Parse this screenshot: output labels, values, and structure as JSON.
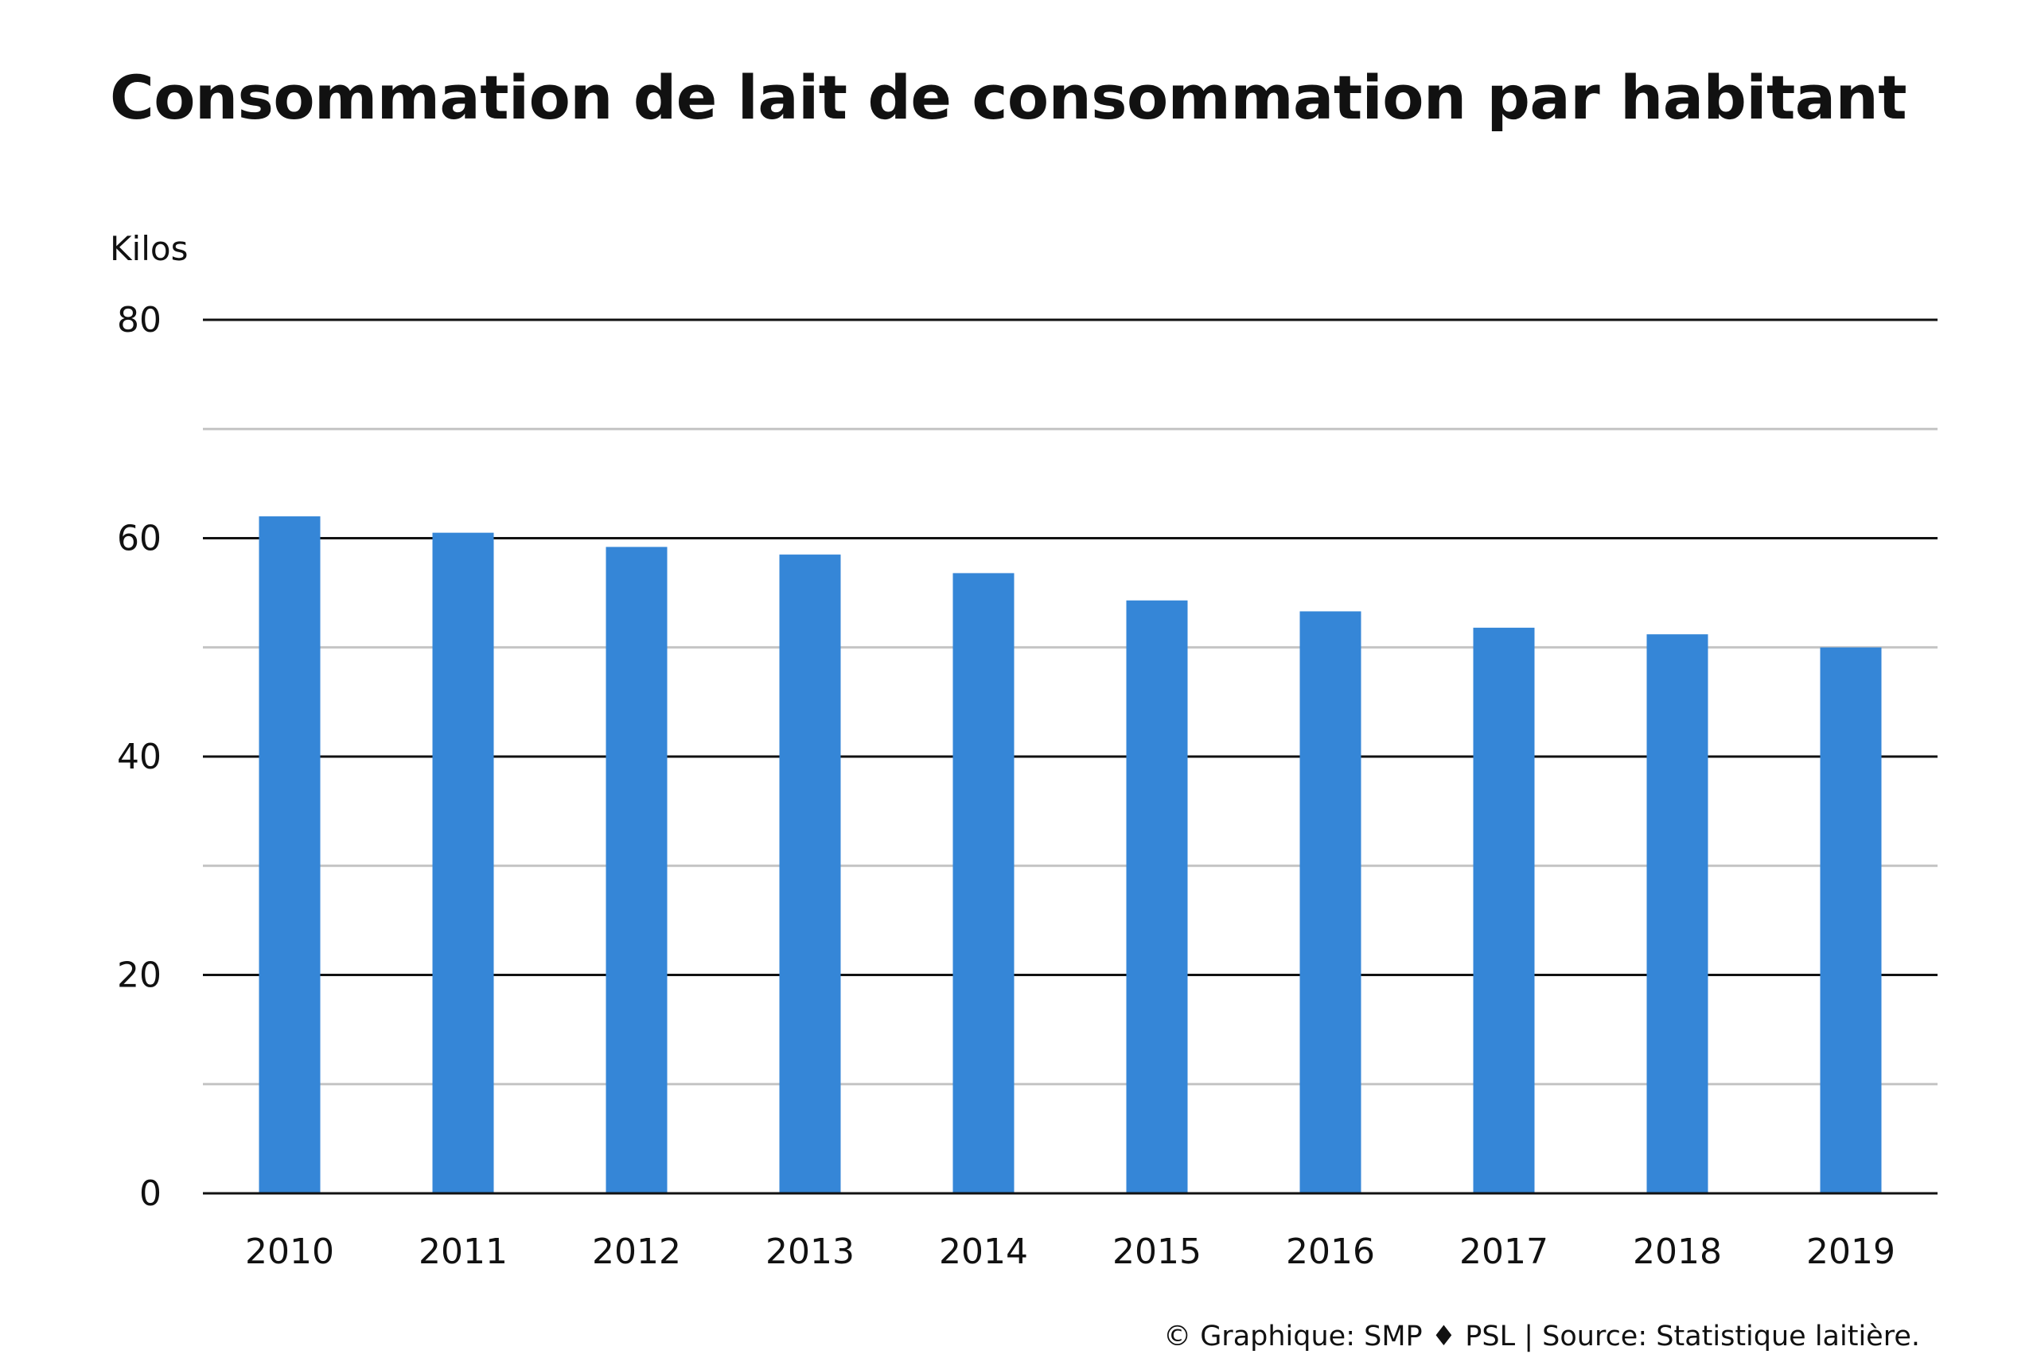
{
  "chart_data": {
    "type": "bar",
    "title": "Consommation de lait de consommation par habitant",
    "ylabel": "Kilos",
    "xlabel": "",
    "categories": [
      "2010",
      "2011",
      "2012",
      "2013",
      "2014",
      "2015",
      "2016",
      "2017",
      "2018",
      "2019"
    ],
    "values": [
      62,
      60.5,
      59.2,
      58.5,
      56.8,
      54.3,
      53.3,
      51.8,
      51.2,
      50
    ],
    "ylim": [
      0,
      80
    ],
    "yticks": [
      0,
      20,
      40,
      60,
      80
    ],
    "grid": true,
    "bar_color": "#3586d7",
    "gridline_color": "#111111",
    "minor_gridline_color": "#c4c4c4"
  },
  "footer": {
    "source": "© Graphique: SMP ♦ PSL | Source: Statistique laitière."
  }
}
